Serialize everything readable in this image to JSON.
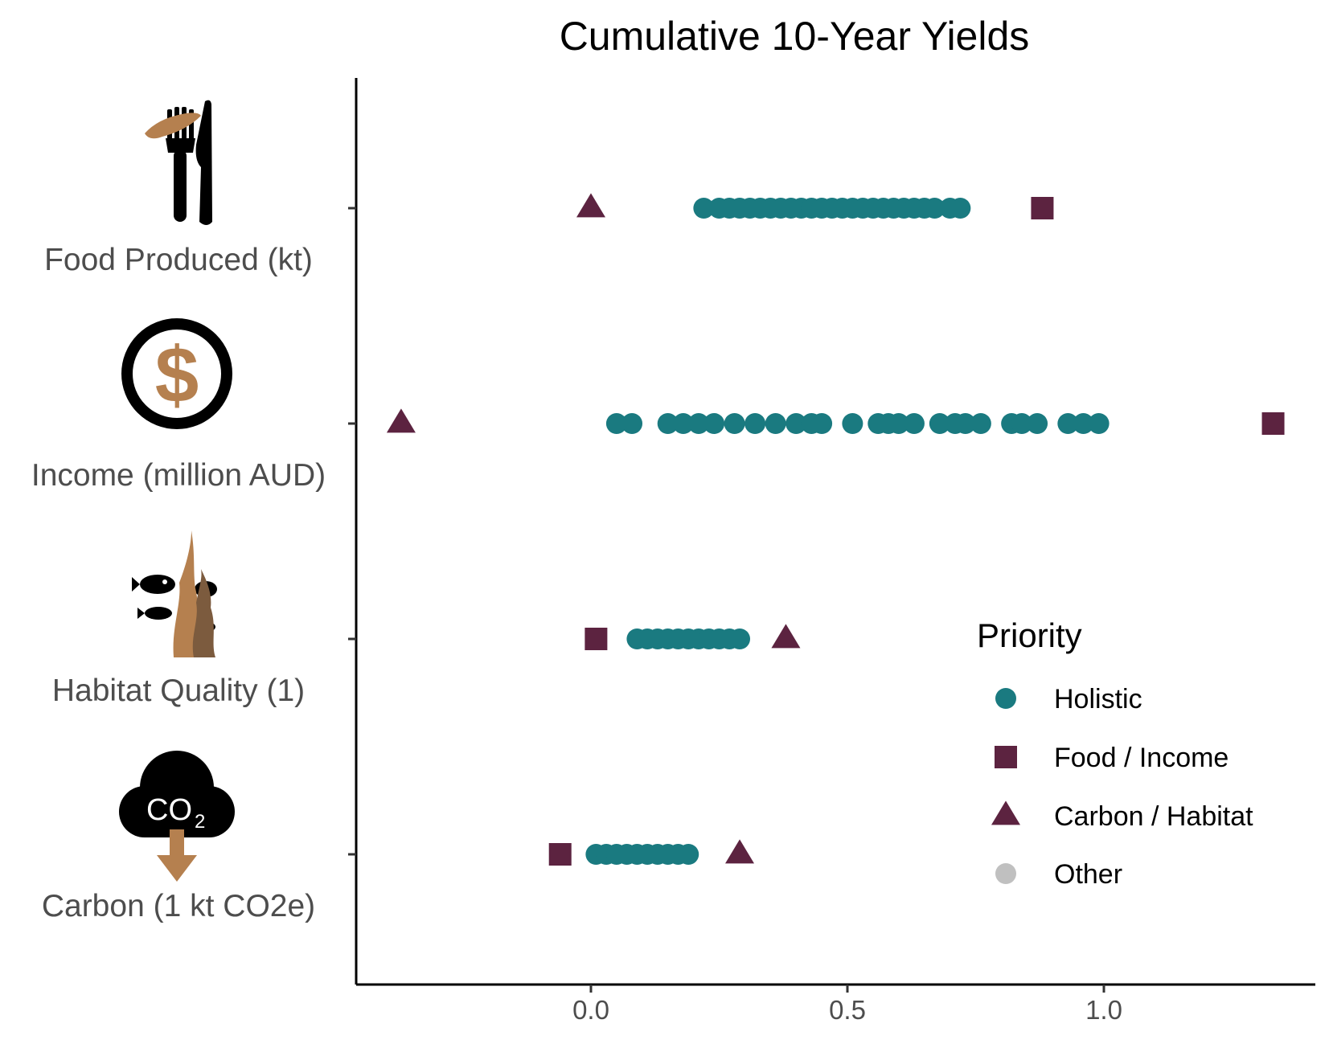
{
  "chart_data": {
    "type": "scatter",
    "title": "Cumulative 10-Year Yields",
    "xlabel": "",
    "ylabel": "",
    "xlim": [
      -0.45,
      1.42
    ],
    "x_ticks": [
      {
        "value": 0.0,
        "label": "0.0"
      },
      {
        "value": 0.5,
        "label": "0.5"
      },
      {
        "value": 1.0,
        "label": "1.0"
      }
    ],
    "categories": [
      {
        "label": "Food Produced (kt)",
        "icon": "food-fork-knife-icon"
      },
      {
        "label": "Income (million AUD)",
        "icon": "dollar-coin-icon"
      },
      {
        "label": "Habitat Quality (1)",
        "icon": "seaweed-fish-icon"
      },
      {
        "label": "Carbon (1 kt CO2e)",
        "icon": "co2-cloud-icon"
      }
    ],
    "icon_text": {
      "co2": "CO",
      "co2_sub": "2",
      "dollar": "$"
    },
    "series": [
      {
        "name": "Holistic",
        "marker": "circle",
        "color": "#1a7a80",
        "points": [
          {
            "category": "Food Produced (kt)",
            "values": [
              0.22,
              0.25,
              0.27,
              0.29,
              0.31,
              0.33,
              0.35,
              0.37,
              0.39,
              0.41,
              0.43,
              0.45,
              0.47,
              0.49,
              0.51,
              0.53,
              0.55,
              0.57,
              0.59,
              0.61,
              0.63,
              0.65,
              0.67,
              0.7,
              0.72
            ]
          },
          {
            "category": "Income (million AUD)",
            "values": [
              0.05,
              0.08,
              0.15,
              0.18,
              0.21,
              0.24,
              0.28,
              0.32,
              0.36,
              0.4,
              0.43,
              0.45,
              0.51,
              0.56,
              0.58,
              0.6,
              0.63,
              0.68,
              0.71,
              0.73,
              0.76,
              0.82,
              0.84,
              0.87,
              0.93,
              0.96,
              0.99
            ]
          },
          {
            "category": "Habitat Quality (1)",
            "values": [
              0.09,
              0.11,
              0.13,
              0.15,
              0.17,
              0.19,
              0.21,
              0.23,
              0.25,
              0.27,
              0.29
            ]
          },
          {
            "category": "Carbon (1 kt CO2e)",
            "values": [
              0.01,
              0.03,
              0.05,
              0.07,
              0.09,
              0.11,
              0.13,
              0.15,
              0.17,
              0.19
            ]
          }
        ]
      },
      {
        "name": "Food / Income",
        "marker": "square",
        "color": "#5c2340",
        "points": [
          {
            "category": "Food Produced (kt)",
            "values": [
              0.88
            ]
          },
          {
            "category": "Income (million AUD)",
            "values": [
              1.33
            ]
          },
          {
            "category": "Habitat Quality (1)",
            "values": [
              0.01
            ]
          },
          {
            "category": "Carbon (1 kt CO2e)",
            "values": [
              -0.06
            ]
          }
        ]
      },
      {
        "name": "Carbon / Habitat",
        "marker": "triangle",
        "color": "#5c2340",
        "points": [
          {
            "category": "Food Produced (kt)",
            "values": [
              0.0
            ]
          },
          {
            "category": "Income (million AUD)",
            "values": [
              -0.37
            ]
          },
          {
            "category": "Habitat Quality (1)",
            "values": [
              0.38
            ]
          },
          {
            "category": "Carbon (1 kt CO2e)",
            "values": [
              0.29
            ]
          }
        ]
      },
      {
        "name": "Other",
        "marker": "circle",
        "color": "#c0c0c0",
        "points": []
      }
    ],
    "legend": {
      "title": "Priority",
      "position": "right"
    },
    "grid": false
  }
}
